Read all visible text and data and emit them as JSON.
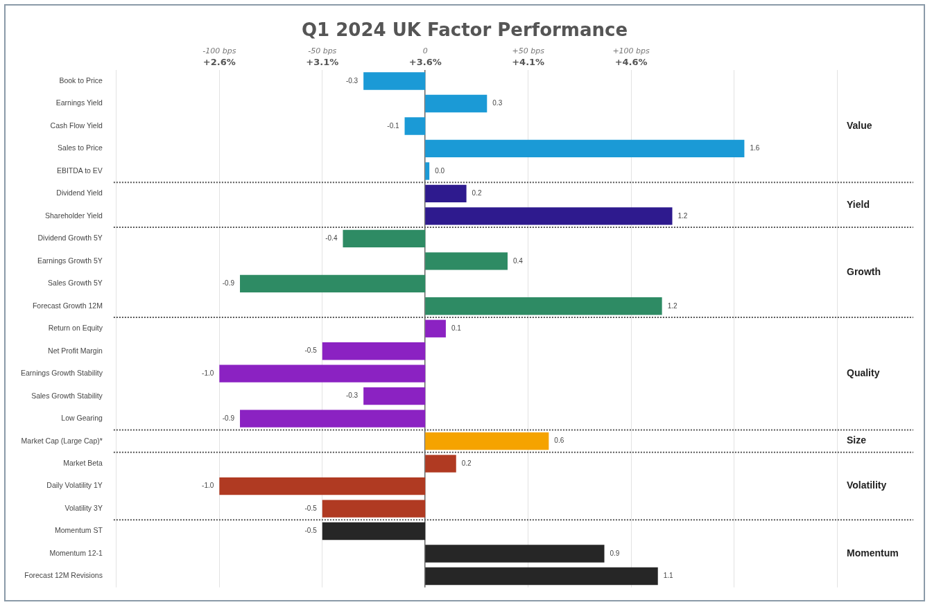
{
  "chart_data": {
    "type": "bar",
    "orientation": "horizontal",
    "title": "Q1 2024 UK Factor Performance",
    "categories": [
      "Book to Price",
      "Earnings Yield",
      "Cash Flow Yield",
      "Sales to Price",
      "EBITDA to EV",
      "Dividend Yield",
      "Shareholder Yield",
      "Dividend Growth 5Y",
      "Earnings Growth 5Y",
      "Sales Growth 5Y",
      "Forecast Growth 12M",
      "Return on Equity",
      "Net Profit Margin",
      "Earnings Growth Stability",
      "Sales Growth Stability",
      "Low Gearing",
      "Market Cap (Large Cap)*",
      "Market Beta",
      "Daily Volatility 1Y",
      "Volatility 3Y",
      "Momentum ST",
      "Momentum 12-1",
      "Forecast 12M Revisions"
    ],
    "base": [
      3.6,
      3.6,
      3.6,
      3.6,
      3.6,
      3.6,
      3.6,
      3.6,
      3.6,
      3.6,
      3.6,
      3.6,
      3.6,
      3.6,
      3.6,
      3.6,
      3.6,
      3.6,
      3.6,
      3.6,
      3.6,
      3.6,
      3.6
    ],
    "values": [
      -0.3,
      0.3,
      -0.1,
      1.55,
      0.02,
      0.2,
      1.2,
      -0.4,
      0.4,
      -0.9,
      1.15,
      0.1,
      -0.5,
      -1.0,
      -0.3,
      -0.9,
      0.6,
      0.15,
      -1.0,
      -0.5,
      -0.5,
      0.87,
      1.13
    ],
    "value_labels": [
      "-0.3",
      "0.3",
      "-0.1",
      "1.6",
      "0.0",
      "0.2",
      "1.2",
      "-0.4",
      "0.4",
      "-0.9",
      "1.2",
      "0.1",
      "-0.5",
      "-1.0",
      "-0.3",
      "-0.9",
      "0.6",
      "0.2",
      "-1.0",
      "-0.5",
      "-0.5",
      "0.9",
      "1.1"
    ],
    "colors": [
      "#1b9ad6",
      "#1b9ad6",
      "#1b9ad6",
      "#1b9ad6",
      "#1b9ad6",
      "#2e1a8e",
      "#2e1a8e",
      "#2e8b64",
      "#2e8b64",
      "#2e8b64",
      "#2e8b64",
      "#8b22c2",
      "#8b22c2",
      "#8b22c2",
      "#8b22c2",
      "#8b22c2",
      "#f5a300",
      "#b03a22",
      "#b03a22",
      "#b03a22",
      "#262626",
      "#262626",
      "#262626"
    ],
    "xlim": [
      2.1,
      5.6
    ],
    "xticks": [
      {
        "value": 2.1,
        "label": null
      },
      {
        "value": 2.6,
        "label": "+2.6%"
      },
      {
        "value": 3.1,
        "label": "+3.1%"
      },
      {
        "value": 3.6,
        "label": "+3.6%"
      },
      {
        "value": 4.1,
        "label": "+4.1%"
      },
      {
        "value": 4.6,
        "label": "+4.6%"
      },
      {
        "value": 5.1,
        "label": null
      },
      {
        "value": 5.6,
        "label": null
      }
    ],
    "x2lim": [
      -150,
      200
    ],
    "x2ticks": [
      {
        "value": -100,
        "label": "-100 bps"
      },
      {
        "value": -50,
        "label": "-50 bps"
      },
      0,
      {
        "value": 50,
        "label": "+50 bps"
      },
      {
        "value": 100,
        "label": "+100 bps"
      }
    ],
    "ref_lines": [
      {
        "axis": "y",
        "value": "EBITDA to EV",
        "line_style": "dotted"
      },
      {
        "axis": "y",
        "value": "Shareholder Yield",
        "line_style": "dotted"
      },
      {
        "axis": "y",
        "value": "Forecast Growth 12M",
        "line_style": "dotted"
      },
      {
        "axis": "y",
        "value": "Low Gearing",
        "line_style": "dotted"
      },
      {
        "axis": "y",
        "value": "Market Cap (Large Cap)*",
        "line_style": "dotted"
      },
      {
        "axis": "y",
        "value": "Volatility 3Y",
        "line_style": "dotted"
      }
    ],
    "annotations": [
      "Value",
      "Yield",
      "Growth",
      "Quality",
      "Size",
      "Volatility",
      "Momentum"
    ],
    "grid": "x",
    "legend": false
  }
}
